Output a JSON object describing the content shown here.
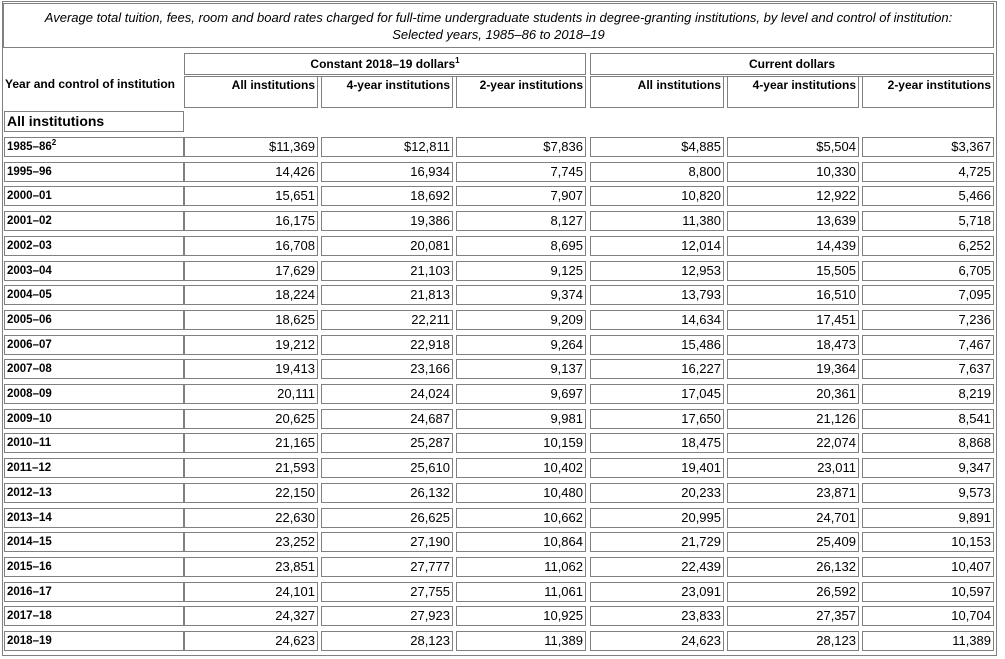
{
  "caption": "Average total tuition, fees, room and board rates charged for full-time undergraduate students in degree-granting institutions, by level and control of institution: Selected years, 1985–86 to 2018–19",
  "headers": {
    "year": "Year and control of institution",
    "constant_group": "Constant 2018–19 dollars",
    "constant_group_note": "1",
    "current_group": "Current dollars",
    "columns": [
      "All institutions",
      "4-year institutions",
      "2-year institutions",
      "All institutions",
      "4-year institutions",
      "2-year institutions"
    ]
  },
  "section_title": "All institutions",
  "rows": [
    {
      "year": "1985–86",
      "note": "2",
      "values": [
        "$11,369",
        "$12,811",
        "$7,836",
        "$4,885",
        "$5,504",
        "$3,367"
      ]
    },
    {
      "year": "1995–96",
      "note": "",
      "values": [
        "14,426",
        "16,934",
        "7,745",
        "8,800",
        "10,330",
        "4,725"
      ]
    },
    {
      "year": "2000–01",
      "note": "",
      "values": [
        "15,651",
        "18,692",
        "7,907",
        "10,820",
        "12,922",
        "5,466"
      ]
    },
    {
      "year": "2001–02",
      "note": "",
      "values": [
        "16,175",
        "19,386",
        "8,127",
        "11,380",
        "13,639",
        "5,718"
      ]
    },
    {
      "year": "2002–03",
      "note": "",
      "values": [
        "16,708",
        "20,081",
        "8,695",
        "12,014",
        "14,439",
        "6,252"
      ]
    },
    {
      "year": "2003–04",
      "note": "",
      "values": [
        "17,629",
        "21,103",
        "9,125",
        "12,953",
        "15,505",
        "6,705"
      ]
    },
    {
      "year": "2004–05",
      "note": "",
      "values": [
        "18,224",
        "21,813",
        "9,374",
        "13,793",
        "16,510",
        "7,095"
      ]
    },
    {
      "year": "2005–06",
      "note": "",
      "values": [
        "18,625",
        "22,211",
        "9,209",
        "14,634",
        "17,451",
        "7,236"
      ]
    },
    {
      "year": "2006–07",
      "note": "",
      "values": [
        "19,212",
        "22,918",
        "9,264",
        "15,486",
        "18,473",
        "7,467"
      ]
    },
    {
      "year": "2007–08",
      "note": "",
      "values": [
        "19,413",
        "23,166",
        "9,137",
        "16,227",
        "19,364",
        "7,637"
      ]
    },
    {
      "year": "2008–09",
      "note": "",
      "values": [
        "20,111",
        "24,024",
        "9,697",
        "17,045",
        "20,361",
        "8,219"
      ]
    },
    {
      "year": "2009–10",
      "note": "",
      "values": [
        "20,625",
        "24,687",
        "9,981",
        "17,650",
        "21,126",
        "8,541"
      ]
    },
    {
      "year": "2010–11",
      "note": "",
      "values": [
        "21,165",
        "25,287",
        "10,159",
        "18,475",
        "22,074",
        "8,868"
      ]
    },
    {
      "year": "2011–12",
      "note": "",
      "values": [
        "21,593",
        "25,610",
        "10,402",
        "19,401",
        "23,011",
        "9,347"
      ]
    },
    {
      "year": "2012–13",
      "note": "",
      "values": [
        "22,150",
        "26,132",
        "10,480",
        "20,233",
        "23,871",
        "9,573"
      ]
    },
    {
      "year": "2013–14",
      "note": "",
      "values": [
        "22,630",
        "26,625",
        "10,662",
        "20,995",
        "24,701",
        "9,891"
      ]
    },
    {
      "year": "2014–15",
      "note": "",
      "values": [
        "23,252",
        "27,190",
        "10,864",
        "21,729",
        "25,409",
        "10,153"
      ]
    },
    {
      "year": "2015–16",
      "note": "",
      "values": [
        "23,851",
        "27,777",
        "11,062",
        "22,439",
        "26,132",
        "10,407"
      ]
    },
    {
      "year": "2016–17",
      "note": "",
      "values": [
        "24,101",
        "27,755",
        "11,061",
        "23,091",
        "26,592",
        "10,597"
      ]
    },
    {
      "year": "2017–18",
      "note": "",
      "values": [
        "24,327",
        "27,923",
        "10,925",
        "23,833",
        "27,357",
        "10,704"
      ]
    },
    {
      "year": "2018–19",
      "note": "",
      "values": [
        "24,623",
        "28,123",
        "11,389",
        "24,623",
        "28,123",
        "11,389"
      ]
    }
  ]
}
